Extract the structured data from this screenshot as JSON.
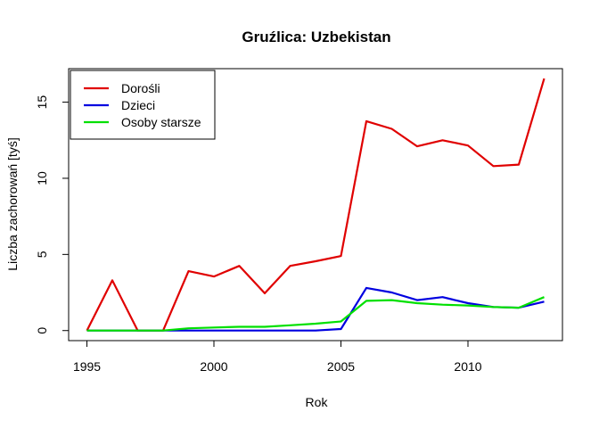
{
  "chart_data": {
    "type": "line",
    "title": "Gruźlica: Uzbekistan",
    "xlabel": "Rok",
    "ylabel": "Liczba zachorowań [tyś]",
    "x": [
      1995,
      1996,
      1997,
      1998,
      1999,
      2000,
      2001,
      2002,
      2003,
      2004,
      2005,
      2006,
      2007,
      2008,
      2009,
      2010,
      2011,
      2012,
      2013
    ],
    "xlim": [
      1994.28,
      2013.72
    ],
    "ylim": [
      -0.66,
      17.2
    ],
    "xticks": [
      1995,
      2000,
      2005,
      2010
    ],
    "yticks": [
      0,
      5,
      10,
      15
    ],
    "grid": false,
    "legend_position": "top-left",
    "series": [
      {
        "name": "Dorośli",
        "color": "#e00000",
        "values": [
          0,
          3.3,
          0,
          0,
          3.9,
          3.55,
          4.25,
          2.45,
          4.25,
          4.55,
          4.9,
          13.75,
          13.25,
          12.1,
          12.5,
          12.15,
          10.8,
          10.9,
          16.55
        ]
      },
      {
        "name": "Dzieci",
        "color": "#0000e0",
        "values": [
          0,
          0,
          0,
          0,
          0,
          0,
          0,
          0,
          0,
          0,
          0.1,
          2.8,
          2.5,
          2.0,
          2.2,
          1.8,
          1.55,
          1.5,
          1.9
        ]
      },
      {
        "name": "Osoby starsze",
        "color": "#00e000",
        "values": [
          0,
          0,
          0,
          0,
          0.15,
          0.2,
          0.25,
          0.25,
          0.35,
          0.45,
          0.6,
          1.95,
          2.0,
          1.8,
          1.7,
          1.65,
          1.55,
          1.5,
          2.2
        ]
      }
    ]
  }
}
